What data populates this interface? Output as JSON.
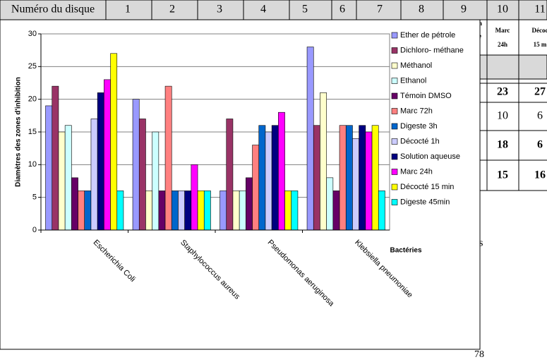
{
  "chart_data": {
    "type": "bar",
    "y_label": "Diamètres des zones d'inhibition",
    "x_label": "Bactéries",
    "categories": [
      "Escherichia Coli",
      "Staphylococcus aureus",
      "Pseudomonas aeruginosa",
      "Klebsiella pneumoniae"
    ],
    "series": [
      {
        "name": "Ether de pétrole",
        "color": "#9999ff",
        "values": [
          19,
          20,
          6,
          28
        ]
      },
      {
        "name": "Dichloro- méthane",
        "color": "#993366",
        "values": [
          22,
          17,
          17,
          16
        ]
      },
      {
        "name": "Méthanol",
        "color": "#ffffcc",
        "values": [
          15,
          6,
          6,
          21
        ]
      },
      {
        "name": "Ethanol",
        "color": "#ccffff",
        "values": [
          16,
          15,
          6,
          8
        ]
      },
      {
        "name": "Témoin DMSO",
        "color": "#660066",
        "values": [
          8,
          6,
          8,
          6
        ]
      },
      {
        "name": "Marc 72h",
        "color": "#ff8080",
        "values": [
          6,
          22,
          13,
          16
        ]
      },
      {
        "name": "Digeste 3h",
        "color": "#0066cc",
        "values": [
          6,
          6,
          16,
          16
        ]
      },
      {
        "name": "Décocté 1h",
        "color": "#ccccff",
        "values": [
          17,
          6,
          15,
          14
        ]
      },
      {
        "name": "Solution aqueuse",
        "color": "#000080",
        "values": [
          21,
          6,
          16,
          16
        ]
      },
      {
        "name": "Marc 24h",
        "color": "#ff00ff",
        "values": [
          23,
          10,
          18,
          15
        ]
      },
      {
        "name": "Décocté 15 min",
        "color": "#ffff00",
        "values": [
          27,
          6,
          6,
          16
        ]
      },
      {
        "name": "Digeste 45min",
        "color": "#00ffff",
        "values": [
          6,
          6,
          6,
          6
        ]
      }
    ],
    "ylim": [
      0,
      30
    ],
    "yticks": [
      0,
      5,
      10,
      15,
      20,
      25,
      30
    ],
    "grid": true,
    "legend": "right"
  },
  "document": {
    "table": {
      "header": [
        "Numéro du disque",
        "1",
        "2",
        "3",
        "4",
        "5",
        "6",
        "7",
        "8",
        "9",
        "10",
        "11"
      ],
      "subheader": [
        [
          "Marc",
          "24h"
        ],
        [
          "Décoc",
          "15 m"
        ]
      ],
      "rows": [
        [
          "23",
          "27"
        ],
        [
          "10",
          "6"
        ],
        [
          "18",
          "6"
        ],
        [
          "15",
          "16"
        ]
      ]
    },
    "fragments": [
      "n",
      "e",
      "es"
    ],
    "page_number": "78"
  }
}
